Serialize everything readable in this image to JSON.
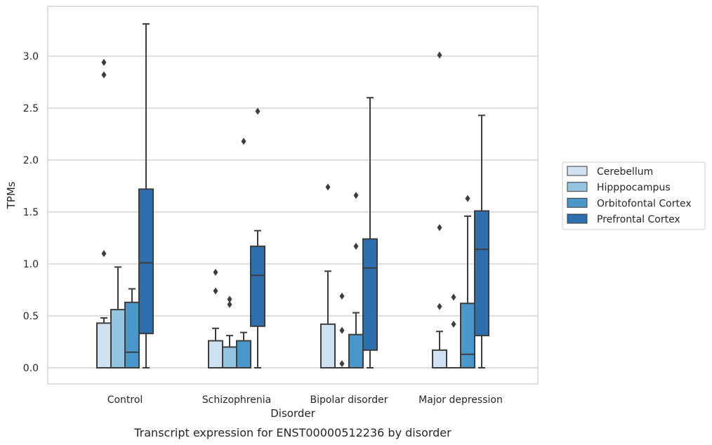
{
  "chart_data": {
    "type": "box",
    "caption": "Transcript expression for ENST00000512236 by disorder",
    "xlabel": "Disorder",
    "ylabel": "TPMs",
    "ylim": [
      -0.16,
      3.42
    ],
    "yticks": [
      "0.0",
      "0.5",
      "1.0",
      "1.5",
      "2.0",
      "2.5",
      "3.0"
    ],
    "ytick_values": [
      0,
      0.5,
      1.0,
      1.5,
      2.0,
      2.5,
      3.0
    ],
    "grid": "horizontal",
    "legend_position": "right",
    "categories": [
      "Control",
      "Schizophrenia",
      "Bipolar disorder",
      "Major depression"
    ],
    "series": [
      {
        "name": "Cerebellum",
        "color": "#d0e1f1",
        "boxes": [
          {
            "whisker_low": 0.0,
            "q1": 0.0,
            "median": 0.0,
            "q3": 0.43,
            "whisker_high": 0.48,
            "outliers": [
              1.1,
              2.82,
              2.94
            ]
          },
          {
            "whisker_low": 0.0,
            "q1": 0.0,
            "median": 0.0,
            "q3": 0.26,
            "whisker_high": 0.38,
            "outliers": [
              0.74,
              0.92
            ]
          },
          {
            "whisker_low": 0.0,
            "q1": 0.0,
            "median": 0.0,
            "q3": 0.42,
            "whisker_high": 0.93,
            "outliers": [
              1.74
            ]
          },
          {
            "whisker_low": 0.0,
            "q1": 0.0,
            "median": 0.0,
            "q3": 0.17,
            "whisker_high": 0.35,
            "outliers": [
              0.59,
              1.35,
              3.01
            ]
          }
        ]
      },
      {
        "name": "Hipppocampus",
        "color": "#94c4df",
        "boxes": [
          {
            "whisker_low": 0.0,
            "q1": 0.0,
            "median": 0.0,
            "q3": 0.56,
            "whisker_high": 0.97,
            "outliers": []
          },
          {
            "whisker_low": 0.0,
            "q1": 0.0,
            "median": 0.0,
            "q3": 0.2,
            "whisker_high": 0.31,
            "outliers": [
              0.61,
              0.66
            ]
          },
          {
            "whisker_low": 0.0,
            "q1": 0.0,
            "median": 0.0,
            "q3": 0.0,
            "whisker_high": 0.0,
            "outliers": [
              0.04,
              0.36,
              0.69
            ]
          },
          {
            "whisker_low": 0.0,
            "q1": 0.0,
            "median": 0.0,
            "q3": 0.0,
            "whisker_high": 0.0,
            "outliers": [
              0.42,
              0.68
            ]
          }
        ]
      },
      {
        "name": "Orbitofontal Cortex",
        "color": "#4a98c9",
        "boxes": [
          {
            "whisker_low": 0.0,
            "q1": 0.0,
            "median": 0.15,
            "q3": 0.63,
            "whisker_high": 0.76,
            "outliers": []
          },
          {
            "whisker_low": 0.0,
            "q1": 0.0,
            "median": 0.0,
            "q3": 0.26,
            "whisker_high": 0.34,
            "outliers": [
              2.18
            ]
          },
          {
            "whisker_low": 0.0,
            "q1": 0.0,
            "median": 0.0,
            "q3": 0.32,
            "whisker_high": 0.53,
            "outliers": [
              1.17,
              1.66
            ]
          },
          {
            "whisker_low": 0.0,
            "q1": 0.0,
            "median": 0.13,
            "q3": 0.62,
            "whisker_high": 1.46,
            "outliers": [
              1.63
            ]
          }
        ]
      },
      {
        "name": "Prefrontal Cortex",
        "color": "#2e6fb0",
        "boxes": [
          {
            "whisker_low": 0.0,
            "q1": 0.33,
            "median": 1.01,
            "q3": 1.72,
            "whisker_high": 3.31,
            "outliers": []
          },
          {
            "whisker_low": 0.0,
            "q1": 0.4,
            "median": 0.89,
            "q3": 1.17,
            "whisker_high": 1.32,
            "outliers": [
              2.47
            ]
          },
          {
            "whisker_low": 0.0,
            "q1": 0.17,
            "median": 0.96,
            "q3": 1.24,
            "whisker_high": 2.6,
            "outliers": []
          },
          {
            "whisker_low": 0.0,
            "q1": 0.31,
            "median": 1.14,
            "q3": 1.51,
            "whisker_high": 2.43,
            "outliers": []
          }
        ]
      }
    ]
  }
}
